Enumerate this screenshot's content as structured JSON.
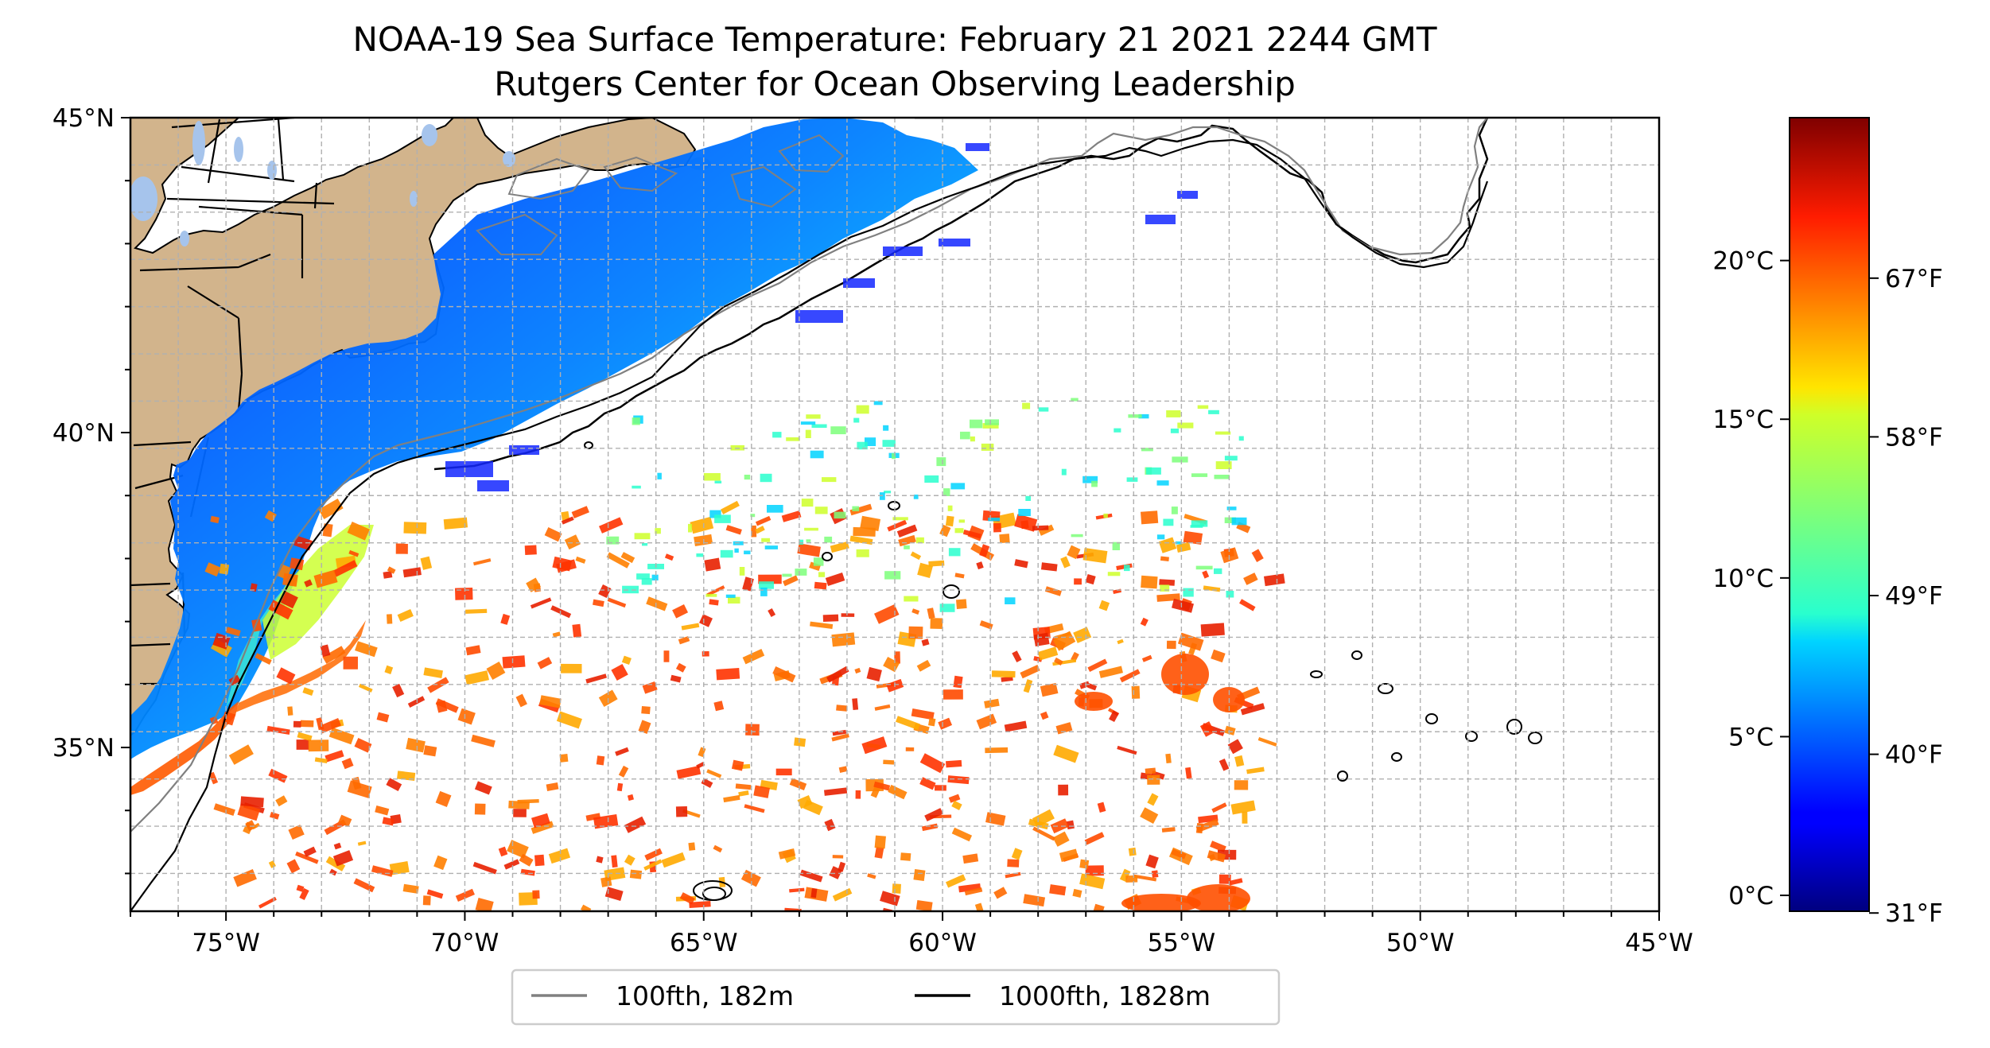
{
  "title": {
    "line1": "NOAA-19 Sea Surface Temperature: February 21 2021 2244 GMT",
    "line2": "Rutgers Center for Ocean Observing Leadership"
  },
  "map": {
    "lon_range": [
      -77,
      -45
    ],
    "lat_range": [
      32.4,
      45
    ],
    "lon_ticks": [
      {
        "value": -75,
        "label": "75°W"
      },
      {
        "value": -70,
        "label": "70°W"
      },
      {
        "value": -65,
        "label": "65°W"
      },
      {
        "value": -60,
        "label": "60°W"
      },
      {
        "value": -55,
        "label": "55°W"
      },
      {
        "value": -50,
        "label": "50°W"
      },
      {
        "value": -45,
        "label": "45°W"
      }
    ],
    "lat_ticks": [
      {
        "value": 45,
        "label": "45°N"
      },
      {
        "value": 40,
        "label": "40°N"
      },
      {
        "value": 35,
        "label": "35°N"
      }
    ],
    "minor_grid": true,
    "land_color": "#d2b48c",
    "ocean_background": "#ffffff",
    "grid_color": "#b0b0b0"
  },
  "legend": {
    "placement": "bottom-center",
    "entries": [
      {
        "label": "100fth, 182m",
        "color": "#808080"
      },
      {
        "label": "1000fth, 1828m",
        "color": "#000000"
      }
    ]
  },
  "colorbar": {
    "colormap": "jet",
    "range_c": [
      -0.5,
      24.5
    ],
    "celsius_ticks": [
      {
        "value": 0,
        "label": "0°C"
      },
      {
        "value": 5,
        "label": "5°C"
      },
      {
        "value": 10,
        "label": "10°C"
      },
      {
        "value": 15,
        "label": "15°C"
      },
      {
        "value": 20,
        "label": "20°C"
      }
    ],
    "fahrenheit_ticks": [
      {
        "value_f": 31,
        "label": "31°F"
      },
      {
        "value_f": 40,
        "label": "40°F"
      },
      {
        "value_f": 49,
        "label": "49°F"
      },
      {
        "value_f": 58,
        "label": "58°F"
      },
      {
        "value_f": 67,
        "label": "67°F"
      }
    ]
  }
}
